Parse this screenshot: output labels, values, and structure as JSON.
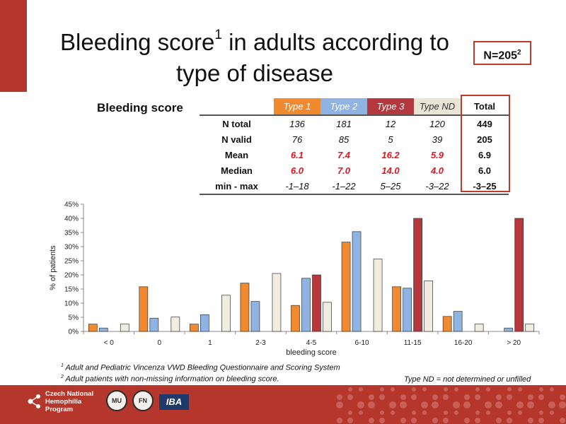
{
  "title": {
    "line1_prefix": "Bleeding score",
    "line1_sup": "1",
    "line1_suffix": " in adults according to",
    "line2": "type of disease"
  },
  "n_badge": {
    "text": "N=205",
    "sup": "2"
  },
  "table": {
    "row_header": "Bleeding score",
    "columns": [
      "Type 1",
      "Type 2",
      "Type 3",
      "Type ND",
      "Total"
    ],
    "rows": [
      {
        "label": "N total",
        "values": [
          "136",
          "181",
          "12",
          "120",
          "449"
        ]
      },
      {
        "label": "N valid",
        "values": [
          "76",
          "85",
          "5",
          "39",
          "205"
        ]
      },
      {
        "label": "Mean",
        "values": [
          "6.1",
          "7.4",
          "16.2",
          "5.9",
          "6.9"
        ]
      },
      {
        "label": "Median",
        "values": [
          "6.0",
          "7.0",
          "14.0",
          "4.0",
          "6.0"
        ]
      },
      {
        "label": "min - max",
        "values": [
          "-1–18",
          "-1–22",
          "5–25",
          "-3–22",
          "-3–25"
        ]
      }
    ]
  },
  "chart_data": {
    "type": "bar",
    "categories": [
      "< 0",
      "0",
      "1",
      "2-3",
      "4-5",
      "6-10",
      "11-15",
      "16-20",
      "> 20"
    ],
    "series": [
      {
        "name": "Type 1",
        "color": "#f18a2f",
        "values": [
          2.6,
          15.8,
          2.6,
          17.1,
          9.2,
          31.6,
          15.8,
          5.3,
          0
        ]
      },
      {
        "name": "Type 2",
        "color": "#8fb4e3",
        "values": [
          1.2,
          4.7,
          5.9,
          10.6,
          18.8,
          35.3,
          15.3,
          7.1,
          1.2
        ]
      },
      {
        "name": "Type 3",
        "color": "#b5383c",
        "values": [
          0,
          0,
          0,
          0,
          20.0,
          0,
          40.0,
          0,
          40.0
        ]
      },
      {
        "name": "Type ND",
        "color": "#f0ede0",
        "values": [
          2.6,
          5.1,
          12.8,
          20.5,
          10.3,
          25.6,
          17.9,
          2.6,
          2.6
        ]
      }
    ],
    "xlabel": "bleeding score",
    "ylabel": "% of patients",
    "ylim": [
      0,
      45
    ],
    "yticks": [
      "0%",
      "5%",
      "10%",
      "15%",
      "20%",
      "25%",
      "30%",
      "35%",
      "40%",
      "45%"
    ],
    "grid": false,
    "legend": "none"
  },
  "footnotes": {
    "fn1_sup": "1",
    "fn1": " Adult and Pediatric Vincenza VWD Bleeding Questionnaire and Scoring System",
    "fn2_sup": "2",
    "fn2": " Adult patients with non-missing information on bleeding score.",
    "type_nd": "Type ND = not determined or unfilled"
  },
  "footer": {
    "program_line1": "Czech National",
    "program_line2": "Hemophilia",
    "program_line3": "Program",
    "seal1": "MU",
    "seal2": "FN",
    "iba": "IBA"
  }
}
